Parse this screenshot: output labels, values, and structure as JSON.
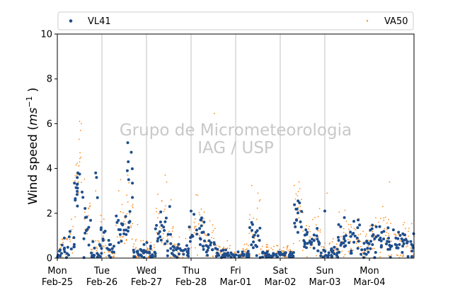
{
  "chart_data": {
    "type": "scatter",
    "ylabel_base": "Wind speed (",
    "ylabel_unit": "ms",
    "ylabel_exp": "−1",
    "ylabel_close": " )",
    "ylim": [
      0,
      10
    ],
    "xlim": [
      0,
      8
    ],
    "yticks": [
      "0",
      "2",
      "4",
      "6",
      "8",
      "10"
    ],
    "xticks": [
      {
        "day": "Mon",
        "date": "Feb-25"
      },
      {
        "day": "Tue",
        "date": "Feb-26"
      },
      {
        "day": "Wed",
        "date": "Feb-27"
      },
      {
        "day": "Thu",
        "date": "Feb-28"
      },
      {
        "day": "Fri",
        "date": "Mar-01"
      },
      {
        "day": "Sat",
        "date": "Mar-02"
      },
      {
        "day": "Sun",
        "date": "Mar-03"
      },
      {
        "day": "Mon",
        "date": "Mar-04"
      }
    ],
    "vertical_gridlines": true,
    "legend_position": "top",
    "watermark": [
      "Grupo de Micrometeorologia",
      "IAG / USP"
    ],
    "series": [
      {
        "name": "VL41",
        "color": "#1f4e8c",
        "marker": "dot-large",
        "segments": [
          {
            "x0": 0.0,
            "x1": 0.25,
            "mean": 0.35,
            "spread": 0.25
          },
          {
            "x0": 0.25,
            "x1": 0.38,
            "mean": 0.9,
            "spread": 0.45
          },
          {
            "x0": 0.38,
            "x1": 0.58,
            "mean": 2.9,
            "spread": 0.35
          },
          {
            "x0": 0.58,
            "x1": 0.75,
            "mean": 1.3,
            "spread": 0.6
          },
          {
            "x0": 0.75,
            "x1": 0.95,
            "mean": 0.25,
            "spread": 0.2
          },
          {
            "x0": 0.95,
            "x1": 1.1,
            "mean": 0.6,
            "spread": 0.5
          },
          {
            "x0": 1.1,
            "x1": 1.3,
            "mean": 0.3,
            "spread": 0.25
          },
          {
            "x0": 1.3,
            "x1": 1.55,
            "mean": 1.2,
            "spread": 0.5
          },
          {
            "x0": 1.55,
            "x1": 1.65,
            "mean": 1.6,
            "spread": 0.5
          },
          {
            "x0": 1.65,
            "x1": 1.7,
            "mean": 2.9,
            "spread": 0.8
          },
          {
            "x0": 1.7,
            "x1": 2.2,
            "mean": 0.22,
            "spread": 0.18
          },
          {
            "x0": 2.2,
            "x1": 2.45,
            "mean": 1.3,
            "spread": 0.45
          },
          {
            "x0": 2.45,
            "x1": 2.6,
            "mean": 0.6,
            "spread": 0.35
          },
          {
            "x0": 2.6,
            "x1": 2.95,
            "mean": 0.25,
            "spread": 0.2
          },
          {
            "x0": 2.95,
            "x1": 3.3,
            "mean": 1.1,
            "spread": 0.45
          },
          {
            "x0": 3.3,
            "x1": 3.55,
            "mean": 0.65,
            "spread": 0.35
          },
          {
            "x0": 3.55,
            "x1": 4.3,
            "mean": 0.15,
            "spread": 0.12
          },
          {
            "x0": 4.3,
            "x1": 4.55,
            "mean": 0.8,
            "spread": 0.4
          },
          {
            "x0": 4.55,
            "x1": 5.3,
            "mean": 0.12,
            "spread": 0.1
          },
          {
            "x0": 5.3,
            "x1": 5.5,
            "mean": 1.8,
            "spread": 0.45
          },
          {
            "x0": 5.5,
            "x1": 5.9,
            "mean": 0.8,
            "spread": 0.45
          },
          {
            "x0": 5.9,
            "x1": 6.3,
            "mean": 0.2,
            "spread": 0.15
          },
          {
            "x0": 6.3,
            "x1": 6.8,
            "mean": 0.9,
            "spread": 0.4
          },
          {
            "x0": 6.8,
            "x1": 7.0,
            "mean": 0.5,
            "spread": 0.35
          },
          {
            "x0": 7.0,
            "x1": 7.4,
            "mean": 0.9,
            "spread": 0.4
          },
          {
            "x0": 7.4,
            "x1": 8.0,
            "mean": 0.6,
            "spread": 0.35
          }
        ],
        "peaks": [
          {
            "x": 0.5,
            "y": 3.75
          },
          {
            "x": 0.46,
            "y": 3.8
          },
          {
            "x": 0.86,
            "y": 3.8
          },
          {
            "x": 0.88,
            "y": 3.6
          },
          {
            "x": 0.9,
            "y": 2.7
          },
          {
            "x": 1.58,
            "y": 5.15
          },
          {
            "x": 1.59,
            "y": 4.3
          },
          {
            "x": 1.57,
            "y": 3.9
          },
          {
            "x": 1.6,
            "y": 3.5
          },
          {
            "x": 5.4,
            "y": 2.55
          },
          {
            "x": 6.0,
            "y": 2.1
          },
          {
            "x": 2.52,
            "y": 2.3
          },
          {
            "x": 3.0,
            "y": 2.1
          },
          {
            "x": 4.38,
            "y": 1.5
          }
        ],
        "count": 520,
        "seed": 41
      },
      {
        "name": "VA50",
        "color": "#ff8c1a",
        "marker": "dot-small",
        "segments": [
          {
            "x0": 0.0,
            "x1": 0.25,
            "mean": 0.4,
            "spread": 0.35
          },
          {
            "x0": 0.25,
            "x1": 0.38,
            "mean": 1.2,
            "spread": 0.6
          },
          {
            "x0": 0.38,
            "x1": 0.58,
            "mean": 3.3,
            "spread": 0.6
          },
          {
            "x0": 0.58,
            "x1": 0.75,
            "mean": 1.5,
            "spread": 0.8
          },
          {
            "x0": 0.75,
            "x1": 0.95,
            "mean": 0.35,
            "spread": 0.3
          },
          {
            "x0": 0.95,
            "x1": 1.1,
            "mean": 0.7,
            "spread": 0.6
          },
          {
            "x0": 1.1,
            "x1": 1.3,
            "mean": 0.4,
            "spread": 0.35
          },
          {
            "x0": 1.3,
            "x1": 1.55,
            "mean": 1.5,
            "spread": 0.7
          },
          {
            "x0": 1.55,
            "x1": 1.7,
            "mean": 1.9,
            "spread": 0.8
          },
          {
            "x0": 1.7,
            "x1": 2.2,
            "mean": 0.35,
            "spread": 0.3
          },
          {
            "x0": 2.2,
            "x1": 2.45,
            "mean": 1.6,
            "spread": 0.7
          },
          {
            "x0": 2.45,
            "x1": 2.6,
            "mean": 0.8,
            "spread": 0.5
          },
          {
            "x0": 2.6,
            "x1": 2.95,
            "mean": 0.35,
            "spread": 0.3
          },
          {
            "x0": 2.95,
            "x1": 3.3,
            "mean": 1.4,
            "spread": 0.6
          },
          {
            "x0": 3.3,
            "x1": 3.55,
            "mean": 0.9,
            "spread": 0.5
          },
          {
            "x0": 3.55,
            "x1": 4.3,
            "mean": 0.3,
            "spread": 0.2
          },
          {
            "x0": 4.3,
            "x1": 4.55,
            "mean": 1.2,
            "spread": 0.7
          },
          {
            "x0": 4.55,
            "x1": 5.3,
            "mean": 0.3,
            "spread": 0.2
          },
          {
            "x0": 5.3,
            "x1": 5.5,
            "mean": 2.1,
            "spread": 0.6
          },
          {
            "x0": 5.5,
            "x1": 5.9,
            "mean": 1.0,
            "spread": 0.55
          },
          {
            "x0": 5.9,
            "x1": 6.3,
            "mean": 0.3,
            "spread": 0.25
          },
          {
            "x0": 6.3,
            "x1": 6.8,
            "mean": 1.1,
            "spread": 0.55
          },
          {
            "x0": 6.8,
            "x1": 7.0,
            "mean": 0.6,
            "spread": 0.45
          },
          {
            "x0": 7.0,
            "x1": 7.4,
            "mean": 1.1,
            "spread": 0.55
          },
          {
            "x0": 7.4,
            "x1": 8.0,
            "mean": 0.7,
            "spread": 0.5
          }
        ],
        "peaks": [
          {
            "x": 0.5,
            "y": 6.1
          },
          {
            "x": 0.54,
            "y": 6.0
          },
          {
            "x": 0.52,
            "y": 5.7
          },
          {
            "x": 0.49,
            "y": 5.3
          },
          {
            "x": 0.51,
            "y": 4.7
          },
          {
            "x": 0.53,
            "y": 4.5
          },
          {
            "x": 0.5,
            "y": 4.3
          },
          {
            "x": 1.42,
            "y": 3.5
          },
          {
            "x": 1.58,
            "y": 3.7
          },
          {
            "x": 2.42,
            "y": 3.7
          },
          {
            "x": 2.45,
            "y": 3.4
          },
          {
            "x": 3.52,
            "y": 6.45
          },
          {
            "x": 4.5,
            "y": 2.9
          },
          {
            "x": 4.55,
            "y": 2.6
          },
          {
            "x": 5.42,
            "y": 3.4
          },
          {
            "x": 5.44,
            "y": 3.1
          },
          {
            "x": 7.45,
            "y": 3.4
          },
          {
            "x": 7.3,
            "y": 2.3
          },
          {
            "x": 6.05,
            "y": 2.9
          },
          {
            "x": 3.15,
            "y": 2.8
          },
          {
            "x": 2.55,
            "y": 2.6
          },
          {
            "x": 1.38,
            "y": 3.0
          },
          {
            "x": 0.86,
            "y": 3.0
          },
          {
            "x": 1.8,
            "y": 1.5
          }
        ],
        "count": 620,
        "seed": 50
      }
    ]
  }
}
